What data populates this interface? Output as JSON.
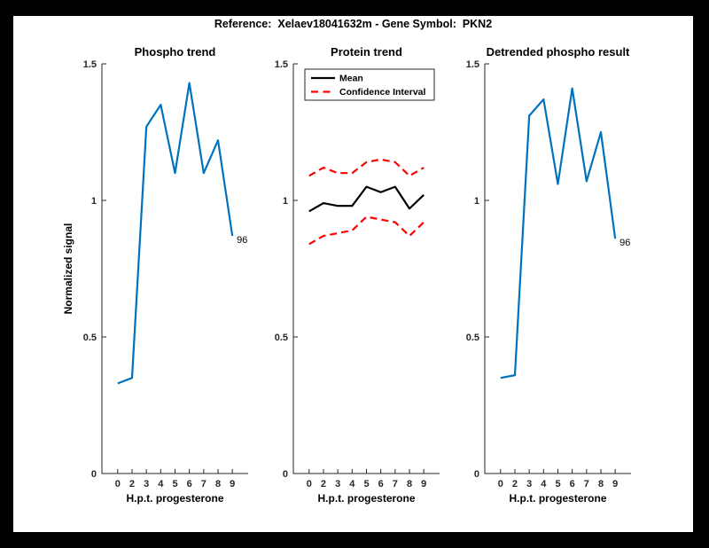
{
  "figure": {
    "title": "Reference:  Xelaev18041632m - Gene Symbol:  PKN2",
    "frame_color": "#000000",
    "canvas_color": "#ffffff"
  },
  "colors": {
    "line_blue": "#0072BD",
    "line_red": "#FF0000",
    "line_black": "#000000",
    "axis": "#262626"
  },
  "chart_data": [
    {
      "type": "line",
      "title": "Phospho trend",
      "xlabel": "H.p.t. progesterone",
      "ylabel": "Normalized signal",
      "x_labels": [
        "0",
        "2",
        "3",
        "4",
        "5",
        "6",
        "7",
        "8",
        "9"
      ],
      "yticks": [
        0,
        0.5,
        1,
        1.5
      ],
      "ylim": [
        0,
        1.5
      ],
      "grid": false,
      "series": [
        {
          "key": "phospho",
          "name": "Phospho trend",
          "color": "#0072BD",
          "dash": false,
          "values": [
            0.33,
            0.35,
            1.27,
            1.35,
            1.1,
            1.43,
            1.1,
            1.22,
            0.87
          ]
        }
      ],
      "annotation": {
        "text": "96",
        "index": 8
      }
    },
    {
      "type": "line",
      "title": "Protein trend",
      "xlabel": "H.p.t. progesterone",
      "ylabel": "",
      "x_labels": [
        "0",
        "2",
        "3",
        "4",
        "5",
        "6",
        "7",
        "8",
        "9"
      ],
      "yticks": [
        0,
        0.5,
        1,
        1.5
      ],
      "ylim": [
        0,
        1.5
      ],
      "grid": false,
      "legend": {
        "position": "top-left",
        "entries": [
          {
            "label": "Mean",
            "color": "#000000",
            "dash": false
          },
          {
            "label": "Confidence Interval",
            "color": "#FF0000",
            "dash": true
          }
        ]
      },
      "series": [
        {
          "key": "mean",
          "name": "Mean",
          "color": "#000000",
          "dash": false,
          "values": [
            0.96,
            0.99,
            0.98,
            0.98,
            1.05,
            1.03,
            1.05,
            0.97,
            1.02
          ]
        },
        {
          "key": "ci-upper",
          "name": "Confidence Interval upper",
          "color": "#FF0000",
          "dash": true,
          "values": [
            1.09,
            1.12,
            1.1,
            1.1,
            1.14,
            1.15,
            1.14,
            1.09,
            1.12
          ]
        },
        {
          "key": "ci-lower",
          "name": "Confidence Interval lower",
          "color": "#FF0000",
          "dash": true,
          "values": [
            0.84,
            0.87,
            0.88,
            0.89,
            0.94,
            0.93,
            0.92,
            0.87,
            0.92
          ]
        }
      ]
    },
    {
      "type": "line",
      "title": "Detrended phospho result",
      "xlabel": "H.p.t. progesterone",
      "ylabel": "",
      "x_labels": [
        "0",
        "2",
        "3",
        "4",
        "5",
        "6",
        "7",
        "8",
        "9"
      ],
      "yticks": [
        0,
        0.5,
        1,
        1.5
      ],
      "ylim": [
        0,
        1.5
      ],
      "grid": false,
      "series": [
        {
          "key": "detrended",
          "name": "Detrended phospho",
          "color": "#0072BD",
          "dash": false,
          "values": [
            0.35,
            0.36,
            1.31,
            1.37,
            1.06,
            1.41,
            1.07,
            1.25,
            0.86
          ]
        }
      ],
      "annotation": {
        "text": "96",
        "index": 8
      }
    }
  ]
}
